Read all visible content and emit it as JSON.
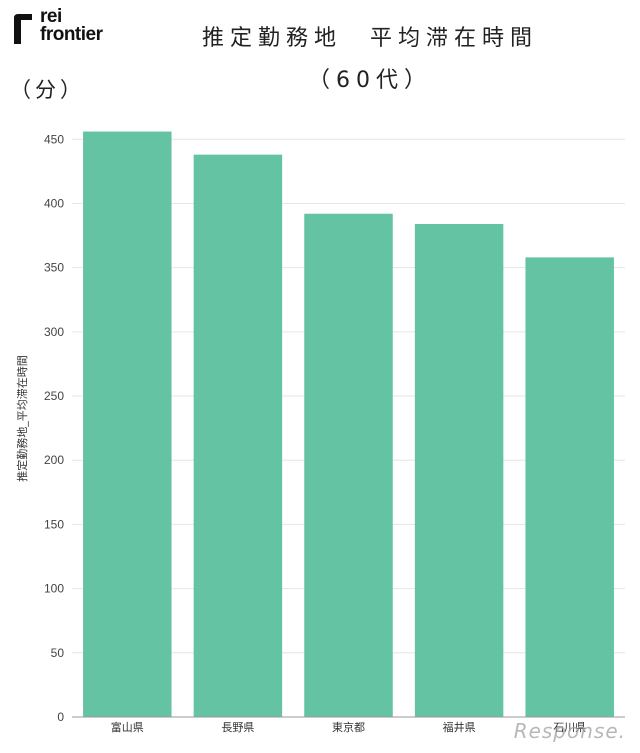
{
  "brand": {
    "logo_line1": "rei",
    "logo_line2": "frontier"
  },
  "title": {
    "line1": "推定勤務地　平均滞在時間",
    "line2": "（60代）"
  },
  "unit_label": "（分）",
  "watermark": "Response.",
  "colors": {
    "bar": "#63c3a2",
    "grid": "#e6e6e6",
    "axis": "#999999"
  },
  "chart_data": {
    "type": "bar",
    "categories": [
      "富山県",
      "長野県",
      "東京都",
      "福井県",
      "石川県"
    ],
    "values": [
      456,
      438,
      392,
      384,
      358
    ],
    "ylabel": "推定勤務地_平均滞在時間",
    "xlabel": "",
    "ylim": [
      0,
      465
    ],
    "yticks": [
      0,
      50,
      100,
      150,
      200,
      250,
      300,
      350,
      400,
      450
    ],
    "grid": true
  }
}
